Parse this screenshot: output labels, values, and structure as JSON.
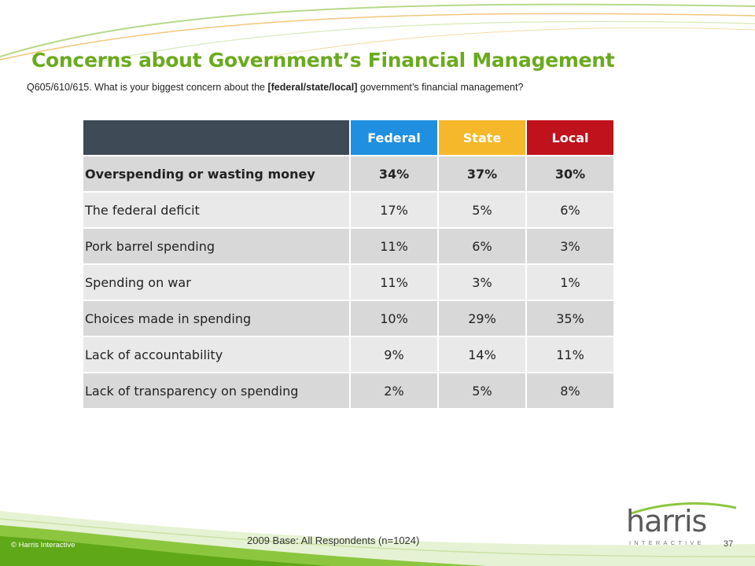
{
  "colors": {
    "title_green": "#6aaa1e",
    "header_dark": "#3e4a55",
    "federal": "#1f8fe0",
    "state": "#f5b82a",
    "local": "#c0121c",
    "row_dark": "#d8d8d8",
    "row_light": "#e9e9e9"
  },
  "slide": {
    "title": "Concerns about Government’s Financial Management",
    "question_prefix": "Q605/610/615.  What is your biggest concern about the ",
    "question_bold": "[federal/state/local]",
    "question_suffix": "  government’s financial management?",
    "base_note": "2009 Base: All Respondents (n=1024)",
    "copyright": "© Harris Interactive",
    "page_number": "37"
  },
  "logo": {
    "word": "harris",
    "sub": "INTERACTIVE"
  },
  "table": {
    "headers": [
      "Federal",
      "State",
      "Local"
    ],
    "rows": [
      {
        "label": "Overspending or wasting money",
        "values": [
          "34%",
          "37%",
          "30%"
        ]
      },
      {
        "label": "The federal deficit",
        "values": [
          "17%",
          "5%",
          "6%"
        ]
      },
      {
        "label": "Pork barrel spending",
        "values": [
          "11%",
          "6%",
          "3%"
        ]
      },
      {
        "label": "Spending on war",
        "values": [
          "11%",
          "3%",
          "1%"
        ]
      },
      {
        "label": "Choices made in spending",
        "values": [
          "10%",
          "29%",
          "35%"
        ]
      },
      {
        "label": "Lack of accountability",
        "values": [
          "9%",
          "14%",
          "11%"
        ]
      },
      {
        "label": "Lack of transparency on spending",
        "values": [
          "2%",
          "5%",
          "8%"
        ]
      }
    ]
  }
}
